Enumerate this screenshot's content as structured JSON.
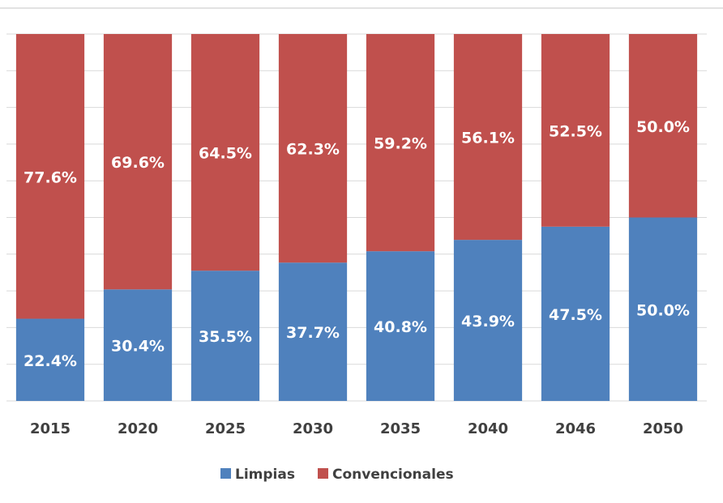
{
  "chart_data": {
    "type": "stacked_bar",
    "categories": [
      "2015",
      "2020",
      "2025",
      "2030",
      "2035",
      "2040",
      "2046",
      "2050"
    ],
    "series": [
      {
        "name": "Limpias",
        "color": "#4f81bd",
        "values": [
          22.4,
          30.4,
          35.5,
          37.7,
          40.8,
          43.9,
          47.5,
          50.0
        ],
        "value_labels": [
          "22.4%",
          "30.4%",
          "35.5%",
          "37.7%",
          "40.8%",
          "43.9%",
          "47.5%",
          "50.0%"
        ]
      },
      {
        "name": "Convencionales",
        "color": "#c0504d",
        "values": [
          77.6,
          69.6,
          64.5,
          62.3,
          59.2,
          56.1,
          52.5,
          50.0
        ],
        "value_labels": [
          "77.6%",
          "69.6%",
          "64.5%",
          "62.3%",
          "59.2%",
          "56.1%",
          "52.5%",
          "50.0%"
        ]
      }
    ],
    "ylim": [
      0,
      100
    ],
    "yticks": [
      0,
      10,
      20,
      30,
      40,
      50,
      60,
      70,
      80,
      90,
      100
    ],
    "grid": true,
    "legend": "bottom"
  }
}
